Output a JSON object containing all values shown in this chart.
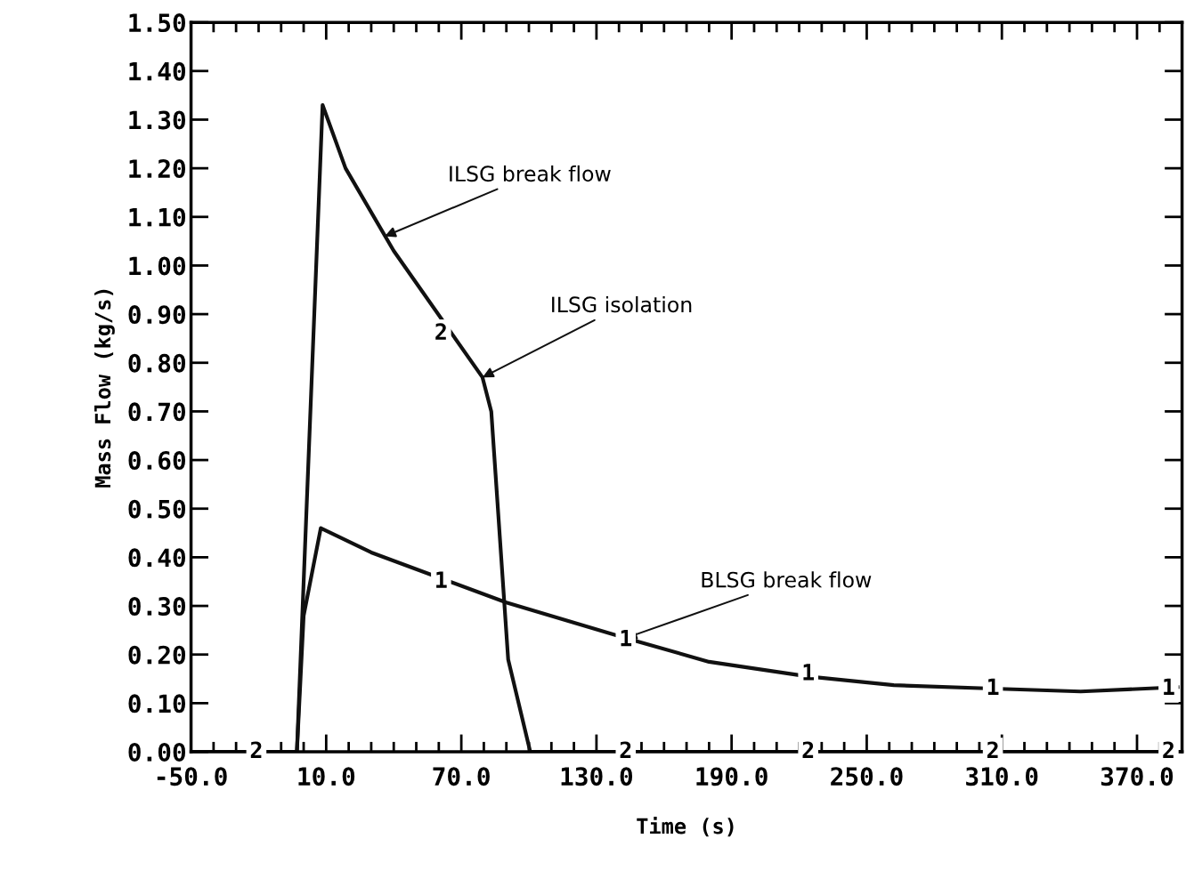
{
  "chart_data": {
    "type": "line",
    "xlabel": "Time (s)",
    "ylabel": "Mass Flow (kg/s)",
    "xlim": [
      -50,
      390
    ],
    "ylim": [
      0,
      1.5
    ],
    "xticks": [
      {
        "value": -50,
        "label": "-50.0"
      },
      {
        "value": 10,
        "label": "10.0"
      },
      {
        "value": 70,
        "label": "70.0"
      },
      {
        "value": 130,
        "label": "130.0"
      },
      {
        "value": 190,
        "label": "190.0"
      },
      {
        "value": 250,
        "label": "250.0"
      },
      {
        "value": 310,
        "label": "310.0"
      },
      {
        "value": 370,
        "label": "370.0"
      }
    ],
    "yticks": [
      {
        "value": 0,
        "label": "0.00"
      },
      {
        "value": 0.1,
        "label": "0.10"
      },
      {
        "value": 0.2,
        "label": "0.20"
      },
      {
        "value": 0.3,
        "label": "0.30"
      },
      {
        "value": 0.4,
        "label": "0.40"
      },
      {
        "value": 0.5,
        "label": "0.50"
      },
      {
        "value": 0.6,
        "label": "0.60"
      },
      {
        "value": 0.7,
        "label": "0.70"
      },
      {
        "value": 0.8,
        "label": "0.80"
      },
      {
        "value": 0.9,
        "label": "0.90"
      },
      {
        "value": 1.0,
        "label": "1.00"
      },
      {
        "value": 1.1,
        "label": "1.10"
      },
      {
        "value": 1.2,
        "label": "1.20"
      },
      {
        "value": 1.3,
        "label": "1.30"
      },
      {
        "value": 1.4,
        "label": "1.40"
      },
      {
        "value": 1.5,
        "label": "1.50"
      }
    ],
    "grid": false,
    "legend": false,
    "marker": "none",
    "line_style": "solid",
    "series": [
      {
        "color": "#111111",
        "x": [
          -50,
          -3,
          8.4,
          18.6,
          40,
          79.4,
          83.3,
          90.8,
          100.6,
          200,
          300,
          390
        ],
        "values": [
          0,
          0,
          1.33,
          1.2,
          1.03,
          0.77,
          0.7,
          0.19,
          0,
          0,
          0,
          0
        ]
      },
      {
        "color": "#111111",
        "x": [
          -50,
          -3,
          0,
          7.6,
          30,
          61.4,
          90,
          143,
          180,
          224,
          262,
          306,
          345,
          388
        ],
        "values": [
          0,
          0,
          0.28,
          0.46,
          0.41,
          0.356,
          0.307,
          0.234,
          0.185,
          0.155,
          0.137,
          0.13,
          0.124,
          0.133
        ]
      }
    ],
    "annotations": [
      {
        "text": "ILSG break flow",
        "x": 36,
        "y": 1.06
      },
      {
        "text": "ILSG isolation",
        "x": 79.4,
        "y": 0.77
      },
      {
        "text": "BLSG break flow",
        "x": 143,
        "y": 0.234
      },
      {
        "text": "2",
        "x": 61,
        "y": 0.86
      },
      {
        "text": "2",
        "x": -21,
        "y": 0
      },
      {
        "text": "2",
        "x": 143,
        "y": 0
      },
      {
        "text": "2",
        "x": 224,
        "y": 0
      },
      {
        "text": "2",
        "x": 306,
        "y": 0
      },
      {
        "text": "2",
        "x": 384,
        "y": 0
      },
      {
        "text": "1",
        "x": 61,
        "y": 0.35
      },
      {
        "text": "1",
        "x": 143,
        "y": 0.23
      },
      {
        "text": "1",
        "x": 224,
        "y": 0.16
      },
      {
        "text": "1",
        "x": 306,
        "y": 0.13
      },
      {
        "text": "1",
        "x": 384,
        "y": 0.13
      }
    ]
  }
}
